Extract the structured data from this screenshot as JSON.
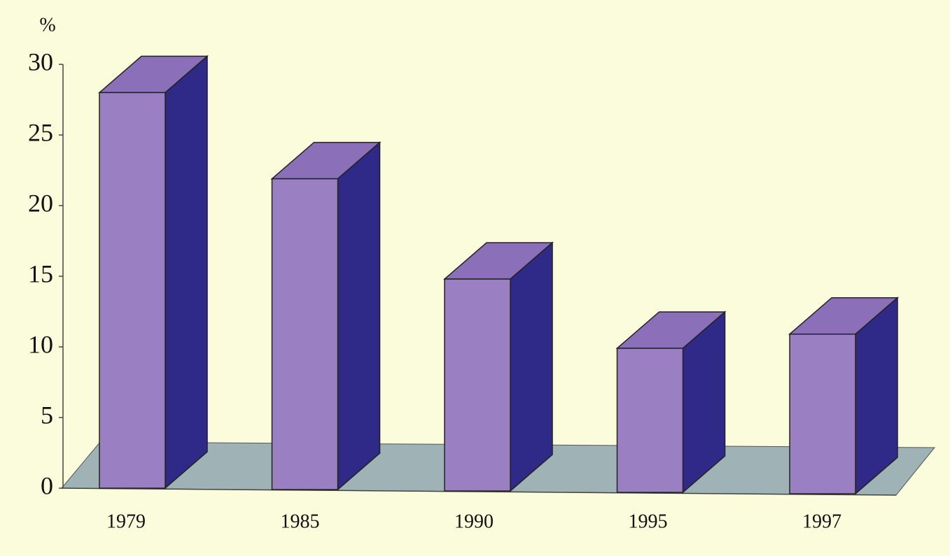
{
  "chart_data": {
    "type": "bar",
    "y_label": "%",
    "categories": [
      "1979",
      "1985",
      "1990",
      "1995",
      "1997"
    ],
    "values": [
      28,
      22,
      15,
      10.2,
      11.3
    ],
    "color": "#9a80c2",
    "ylim": [
      0,
      30
    ],
    "yticks": [
      0,
      5,
      10,
      15,
      20,
      25,
      30
    ]
  }
}
